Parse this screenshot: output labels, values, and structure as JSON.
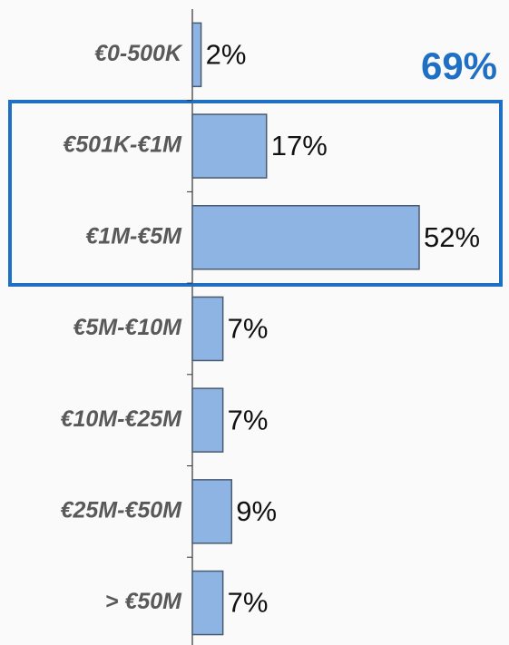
{
  "chart_data": {
    "type": "bar",
    "orientation": "horizontal",
    "categories": [
      "€0-500K",
      "€501K-€1M",
      "€1M-€5M",
      "€5M-€10M",
      "€10M-€25M",
      "€25M-€50M",
      "> €50M"
    ],
    "values": [
      2,
      17,
      52,
      7,
      7,
      9,
      7
    ],
    "value_labels": [
      "2%",
      "17%",
      "52%",
      "7%",
      "7%",
      "9%",
      "7%"
    ],
    "color": "#8db4e2",
    "annotation": "69%"
  }
}
